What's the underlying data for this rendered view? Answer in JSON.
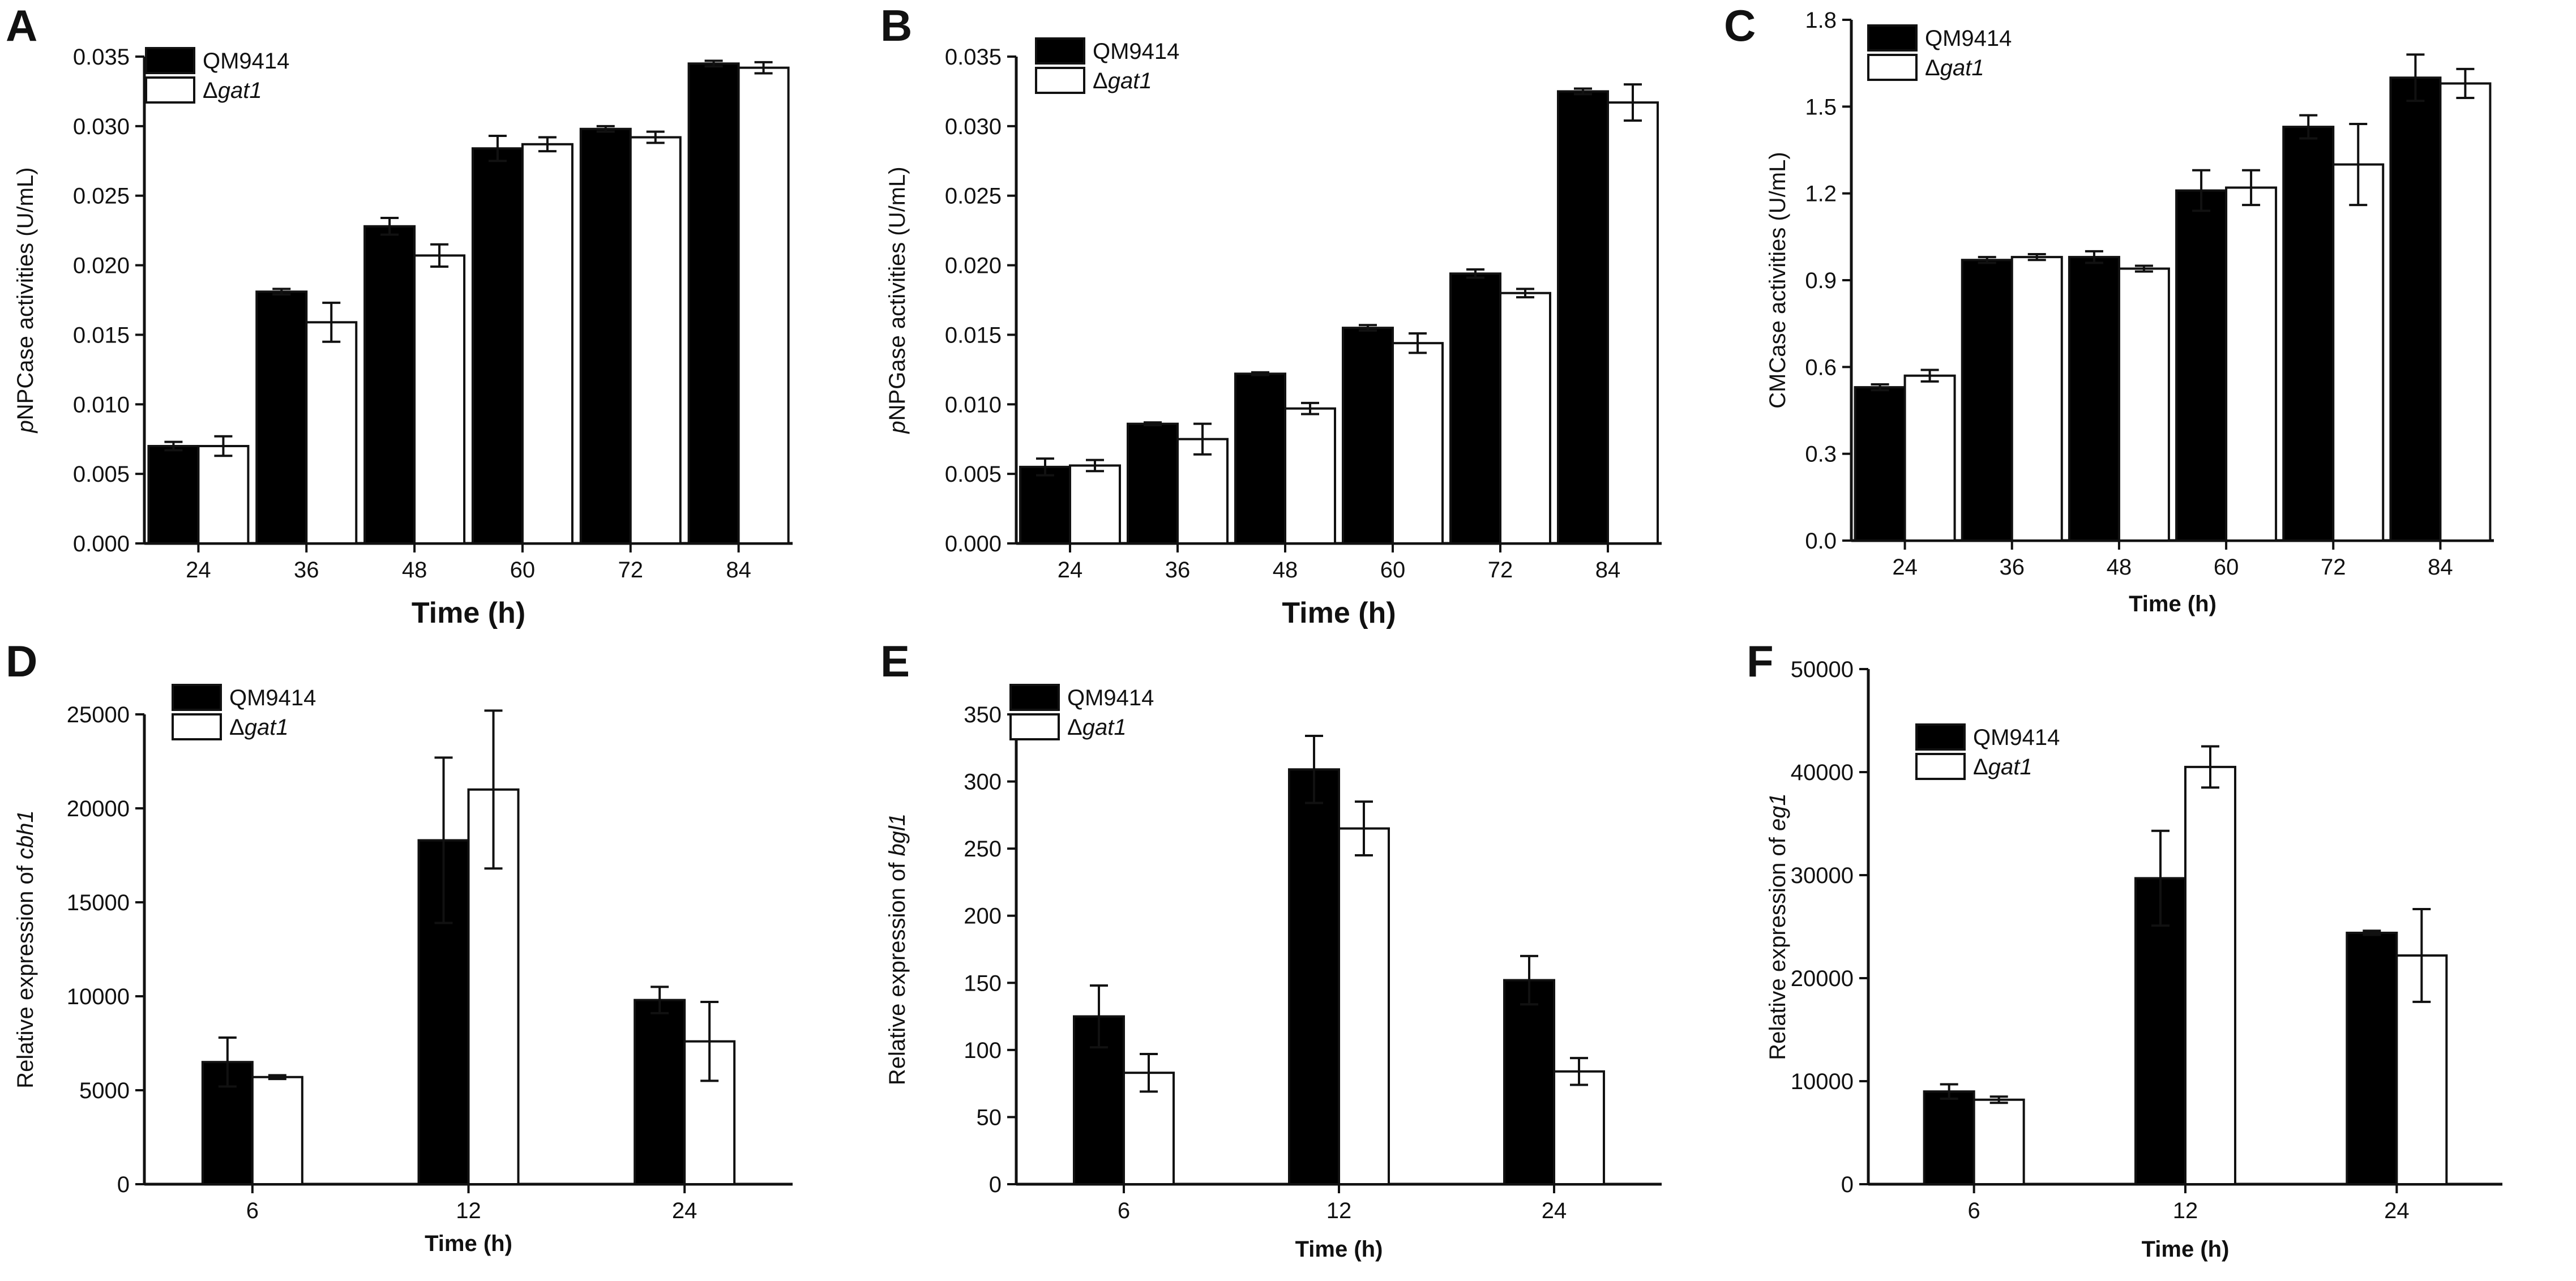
{
  "figure_title": "",
  "colors": {
    "series1": "#000000",
    "series2": "#ffffff",
    "axis": "#111111"
  },
  "chart_data": [
    {
      "panel": "A",
      "type": "bar",
      "title": "",
      "xlabel": "Time (h)",
      "ylabel_italic": "p",
      "ylabel_rest": "NPCase activities (U/mL)",
      "categories": [
        "24",
        "36",
        "48",
        "60",
        "72",
        "84"
      ],
      "ylim": [
        0,
        0.035
      ],
      "yticks": [
        "0.000",
        "0.005",
        "0.010",
        "0.015",
        "0.020",
        "0.025",
        "0.030",
        "0.035"
      ],
      "legend_position": "top-left",
      "series": [
        {
          "name": "QM9414",
          "fill": "#000000",
          "values": [
            0.007,
            0.0181,
            0.0228,
            0.0284,
            0.0298,
            0.0345
          ],
          "errors": [
            0.0003,
            0.0002,
            0.0006,
            0.0009,
            0.0002,
            0.0002
          ]
        },
        {
          "name_prefix": "Δ",
          "name_italic": "gat1",
          "fill": "#ffffff",
          "values": [
            0.007,
            0.0159,
            0.0207,
            0.0287,
            0.0292,
            0.0342
          ],
          "errors": [
            0.0007,
            0.0014,
            0.0008,
            0.0005,
            0.0004,
            0.0004
          ]
        }
      ]
    },
    {
      "panel": "B",
      "type": "bar",
      "title": "",
      "xlabel": "Time (h)",
      "ylabel_italic": "p",
      "ylabel_rest": "NPGase activities (U/mL)",
      "categories": [
        "24",
        "36",
        "48",
        "60",
        "72",
        "84"
      ],
      "ylim": [
        0,
        0.035
      ],
      "yticks": [
        "0.000",
        "0.005",
        "0.010",
        "0.015",
        "0.020",
        "0.025",
        "0.030",
        "0.035"
      ],
      "legend_position": "top-left",
      "series": [
        {
          "name": "QM9414",
          "fill": "#000000",
          "values": [
            0.0055,
            0.0086,
            0.0122,
            0.0155,
            0.0194,
            0.0325
          ],
          "errors": [
            0.0006,
            0.0001,
            0.0001,
            0.0002,
            0.0003,
            0.0002
          ]
        },
        {
          "name_prefix": "Δ",
          "name_italic": "gat1",
          "fill": "#ffffff",
          "values": [
            0.0056,
            0.0075,
            0.0097,
            0.0144,
            0.018,
            0.0317
          ],
          "errors": [
            0.0004,
            0.0011,
            0.0004,
            0.0007,
            0.0003,
            0.0013
          ]
        }
      ]
    },
    {
      "panel": "C",
      "type": "bar",
      "title": "",
      "xlabel": "Time (h)",
      "ylabel_italic": "",
      "ylabel_rest": "CMCase activities (U/mL)",
      "categories": [
        "24",
        "36",
        "48",
        "60",
        "72",
        "84"
      ],
      "ylim": [
        0,
        1.8
      ],
      "yticks": [
        "0.0",
        "0.3",
        "0.6",
        "0.9",
        "1.2",
        "1.5",
        "1.8"
      ],
      "legend_position": "top-left",
      "series": [
        {
          "name": "QM9414",
          "fill": "#000000",
          "values": [
            0.53,
            0.97,
            0.98,
            1.21,
            1.43,
            1.6
          ],
          "errors": [
            0.01,
            0.01,
            0.02,
            0.07,
            0.04,
            0.08
          ]
        },
        {
          "name_prefix": "Δ",
          "name_italic": "gat1",
          "fill": "#ffffff",
          "values": [
            0.57,
            0.98,
            0.94,
            1.22,
            1.3,
            1.58
          ],
          "errors": [
            0.02,
            0.01,
            0.01,
            0.06,
            0.14,
            0.05
          ]
        }
      ]
    },
    {
      "panel": "D",
      "type": "bar",
      "title": "",
      "xlabel": "Time (h)",
      "ylabel_italic": "",
      "ylabel_rest": "Relative expression of ",
      "ylabel_gene": "cbh1",
      "categories": [
        "6",
        "12",
        "24"
      ],
      "ylim": [
        0,
        25000
      ],
      "yticks": [
        "0",
        "5000",
        "10000",
        "15000",
        "20000",
        "25000"
      ],
      "legend_position": "top-left",
      "series": [
        {
          "name": "QM9414",
          "fill": "#000000",
          "values": [
            6500,
            18300,
            9800
          ],
          "errors": [
            1300,
            4400,
            700
          ]
        },
        {
          "name_prefix": "Δ",
          "name_italic": "gat1",
          "fill": "#ffffff",
          "values": [
            5700,
            21000,
            7600
          ],
          "errors": [
            100,
            4200,
            2100
          ]
        }
      ]
    },
    {
      "panel": "E",
      "type": "bar",
      "title": "",
      "xlabel": "Time (h)",
      "ylabel_italic": "",
      "ylabel_rest": "Relative expression of ",
      "ylabel_gene": "bgl1",
      "categories": [
        "6",
        "12",
        "24"
      ],
      "ylim": [
        0,
        350
      ],
      "yticks": [
        "0",
        "50",
        "100",
        "150",
        "200",
        "250",
        "300",
        "350"
      ],
      "legend_position": "top-left",
      "series": [
        {
          "name": "QM9414",
          "fill": "#000000",
          "values": [
            125,
            309,
            152
          ],
          "errors": [
            23,
            25,
            18
          ]
        },
        {
          "name_prefix": "Δ",
          "name_italic": "gat1",
          "fill": "#ffffff",
          "values": [
            83,
            265,
            84
          ],
          "errors": [
            14,
            20,
            10
          ]
        }
      ]
    },
    {
      "panel": "F",
      "type": "bar",
      "title": "",
      "xlabel": "Time (h)",
      "ylabel_italic": "",
      "ylabel_rest": "Relative expression of ",
      "ylabel_gene": "eg1",
      "categories": [
        "6",
        "12",
        "24"
      ],
      "ylim": [
        0,
        50000
      ],
      "yticks": [
        "0",
        "10000",
        "20000",
        "30000",
        "40000",
        "50000"
      ],
      "legend_position": "top-left",
      "series": [
        {
          "name": "QM9414",
          "fill": "#000000",
          "values": [
            9000,
            29700,
            24400
          ],
          "errors": [
            700,
            4600,
            200
          ]
        },
        {
          "name_prefix": "Δ",
          "name_italic": "gat1",
          "fill": "#ffffff",
          "values": [
            8200,
            40500,
            22200
          ],
          "errors": [
            300,
            2000,
            4500
          ]
        }
      ]
    }
  ]
}
